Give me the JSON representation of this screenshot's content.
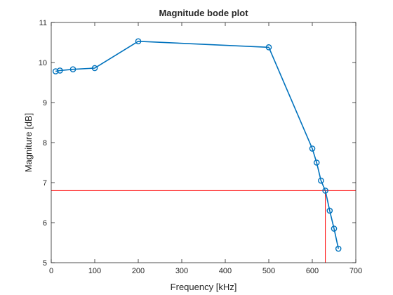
{
  "chart_data": {
    "type": "line",
    "title": "Magnitude bode plot",
    "xlabel": "Frequency [kHz]",
    "ylabel": "Magniture [dB]",
    "xlim": [
      0,
      700
    ],
    "ylim": [
      5,
      11
    ],
    "xticks": [
      0,
      100,
      200,
      300,
      400,
      500,
      600,
      700
    ],
    "yticks": [
      5,
      6,
      7,
      8,
      9,
      10,
      11
    ],
    "grid": false,
    "box": true,
    "series": [
      {
        "color": "#0072BD",
        "marker": "circle",
        "x": [
          10,
          20,
          50,
          100,
          200,
          500,
          600,
          610,
          620,
          630,
          640,
          650,
          660
        ],
        "y": [
          9.78,
          9.8,
          9.83,
          9.86,
          10.53,
          10.38,
          7.85,
          7.5,
          7.05,
          6.8,
          6.3,
          5.85,
          5.35
        ]
      }
    ],
    "reference_lines": [
      {
        "orientation": "horizontal",
        "value": 6.8,
        "color": "#FF0000"
      },
      {
        "orientation": "vertical",
        "value": 630,
        "color": "#FF0000"
      }
    ]
  }
}
